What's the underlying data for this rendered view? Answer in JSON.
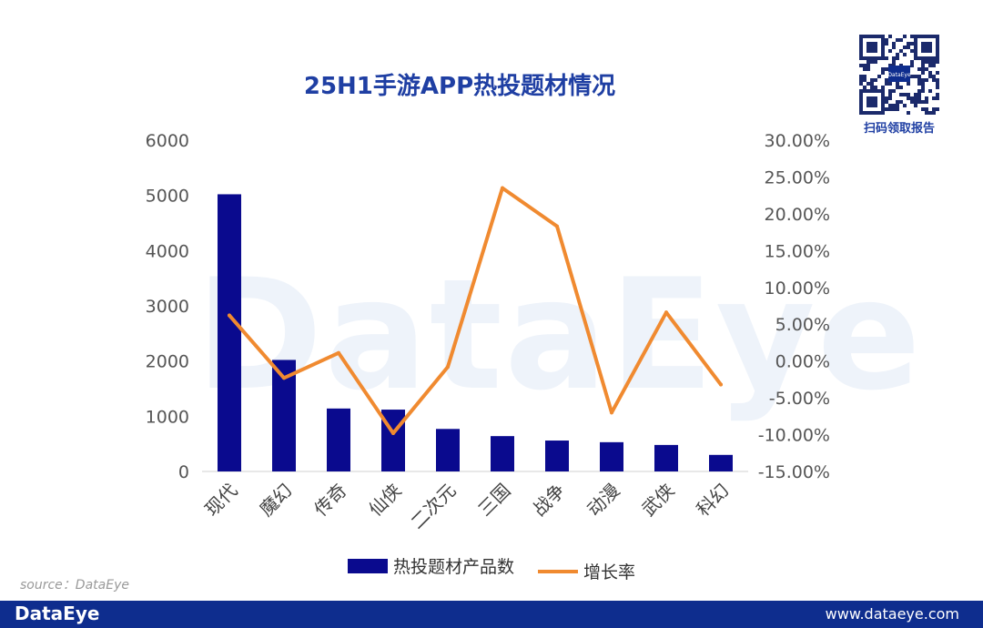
{
  "watermark": "DataEye",
  "qr": {
    "caption": "扫码领取报告",
    "center_label": "DataEye"
  },
  "colors": {
    "bar": "#0a0a8e",
    "line": "#f08a30",
    "title": "#1f3fa3",
    "footer": "#0e2d8e"
  },
  "chart_data": {
    "type": "bar",
    "title": "25H1手游APP热投题材情况",
    "categories": [
      "现代",
      "魔幻",
      "传奇",
      "仙侠",
      "二次元",
      "三国",
      "战争",
      "动漫",
      "武侠",
      "科幻"
    ],
    "series": [
      {
        "name": "热投题材产品数",
        "type": "bar",
        "axis": "left",
        "values": [
          5020,
          2020,
          1140,
          1120,
          770,
          640,
          560,
          530,
          480,
          300
        ]
      },
      {
        "name": "增长率",
        "type": "line",
        "axis": "right",
        "values": [
          6.2,
          -2.3,
          1.1,
          -9.8,
          -0.8,
          23.5,
          18.3,
          -7.0,
          6.6,
          -3.2
        ]
      }
    ],
    "ylim_left": [
      0,
      6000
    ],
    "yticks_left": [
      "0",
      "1000",
      "2000",
      "3000",
      "4000",
      "5000",
      "6000"
    ],
    "ylim_right": [
      -15,
      30
    ],
    "yticks_right": [
      "-15.00%",
      "-10.00%",
      "-5.00%",
      "0.00%",
      "5.00%",
      "10.00%",
      "15.00%",
      "20.00%",
      "25.00%",
      "30.00%"
    ],
    "grid": false,
    "legend_position": "bottom"
  },
  "source": "source：DataEye",
  "footer": {
    "logo": "DataEye",
    "url": "www.dataeye.com"
  }
}
